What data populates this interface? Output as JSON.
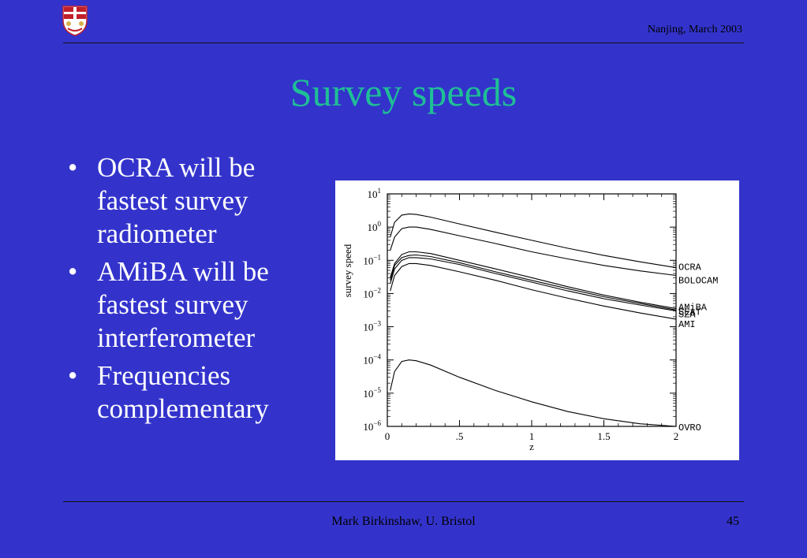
{
  "header": {
    "venue_date": "Nanjing, March 2003"
  },
  "slide": {
    "title": "Survey speeds",
    "bullets": [
      {
        "lines": [
          "OCRA will be",
          "fastest survey",
          "radiometer"
        ]
      },
      {
        "lines": [
          "AMiBA will be",
          "fastest survey",
          "interferometer"
        ]
      },
      {
        "lines": [
          "Frequencies",
          "complementary"
        ]
      }
    ]
  },
  "footer": {
    "author": "Mark Birkinshaw, U. Bristol",
    "page": "45"
  },
  "logo": {
    "icon": "university-crest-icon",
    "colors": {
      "red": "#c0202a",
      "gold": "#d8b04a",
      "white": "#ffffff"
    }
  },
  "chart_data": {
    "type": "line",
    "xlabel": "z",
    "ylabel": "survey speed",
    "xlim": [
      0,
      2
    ],
    "ylim": [
      1e-06,
      10
    ],
    "yscale": "log",
    "x_ticks": [
      "0",
      ".5",
      "1",
      "1.5",
      "2"
    ],
    "y_ticks": [
      "10^-6",
      "10^-5",
      "10^-4",
      "10^-3",
      "10^-2",
      "10^-1",
      "10^0",
      "10^1"
    ],
    "x": [
      0.02,
      0.05,
      0.1,
      0.15,
      0.2,
      0.3,
      0.5,
      0.75,
      1.0,
      1.25,
      1.5,
      1.75,
      2.0
    ],
    "series": [
      {
        "name": "OCRA",
        "values": [
          0.5,
          1.4,
          2.3,
          2.5,
          2.4,
          2.0,
          1.25,
          0.7,
          0.4,
          0.23,
          0.14,
          0.09,
          0.06
        ]
      },
      {
        "name": "BOLOCAM",
        "values": [
          0.2,
          0.5,
          0.9,
          1.0,
          1.0,
          0.85,
          0.55,
          0.32,
          0.18,
          0.11,
          0.07,
          0.048,
          0.035
        ]
      },
      {
        "name": "AMiBA",
        "values": [
          0.03,
          0.08,
          0.15,
          0.18,
          0.18,
          0.16,
          0.1,
          0.055,
          0.03,
          0.016,
          0.009,
          0.0055,
          0.0035
        ]
      },
      {
        "name": "SZA",
        "values": [
          0.025,
          0.07,
          0.12,
          0.14,
          0.145,
          0.13,
          0.085,
          0.045,
          0.025,
          0.014,
          0.008,
          0.005,
          0.0032
        ]
      },
      {
        "name": "SEAT",
        "values": [
          0.02,
          0.055,
          0.1,
          0.12,
          0.12,
          0.11,
          0.075,
          0.04,
          0.022,
          0.012,
          0.007,
          0.0045,
          0.003
        ]
      },
      {
        "name": "AMI",
        "values": [
          0.012,
          0.035,
          0.065,
          0.08,
          0.08,
          0.07,
          0.045,
          0.025,
          0.013,
          0.0072,
          0.0042,
          0.0026,
          0.0017
        ]
      },
      {
        "name": "OVRO",
        "values": [
          1.2e-05,
          4.5e-05,
          9e-05,
          0.0001,
          9.5e-05,
          7e-05,
          3e-05,
          1.2e-05,
          5.5e-06,
          2.8e-06,
          1.7e-06,
          1.2e-06,
          1e-06
        ]
      }
    ]
  }
}
